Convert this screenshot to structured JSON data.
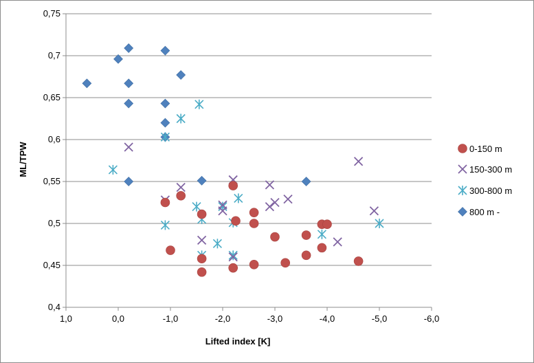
{
  "chart_data": {
    "type": "scatter",
    "title": "",
    "xlabel": "Lifted index [K]",
    "ylabel": "ML/TPW",
    "xlim": [
      1.0,
      -6.0
    ],
    "ylim": [
      0.4,
      0.75
    ],
    "x_reversed": true,
    "x_ticks": [
      1.0,
      0.0,
      -1.0,
      -2.0,
      -3.0,
      -4.0,
      -5.0,
      -6.0
    ],
    "x_tick_labels": [
      "1,0",
      "0,0",
      "-1,0",
      "-2,0",
      "-3,0",
      "-4,0",
      "-5,0",
      "-6,0"
    ],
    "y_ticks": [
      0.4,
      0.45,
      0.5,
      0.55,
      0.6,
      0.65,
      0.7,
      0.75
    ],
    "y_tick_labels": [
      "0,4",
      "0,45",
      "0,5",
      "0,55",
      "0,6",
      "0,65",
      "0,7",
      "0,75"
    ],
    "grid": "horizontal",
    "legend_position": "right",
    "series": [
      {
        "name": "0-150 m",
        "marker": "circle",
        "color": "#C0504D",
        "points": [
          [
            -0.9,
            0.525
          ],
          [
            -1.2,
            0.533
          ],
          [
            -1.0,
            0.468
          ],
          [
            -1.6,
            0.511
          ],
          [
            -1.6,
            0.458
          ],
          [
            -1.6,
            0.442
          ],
          [
            -2.2,
            0.545
          ],
          [
            -2.25,
            0.503
          ],
          [
            -2.2,
            0.447
          ],
          [
            -2.6,
            0.513
          ],
          [
            -2.6,
            0.5
          ],
          [
            -2.6,
            0.451
          ],
          [
            -3.0,
            0.484
          ],
          [
            -3.2,
            0.453
          ],
          [
            -3.6,
            0.486
          ],
          [
            -3.6,
            0.462
          ],
          [
            -3.9,
            0.499
          ],
          [
            -4.0,
            0.499
          ],
          [
            -3.9,
            0.471
          ],
          [
            -4.6,
            0.455
          ]
        ]
      },
      {
        "name": "150-300 m",
        "marker": "x",
        "color": "#8064A2",
        "points": [
          [
            -0.2,
            0.591
          ],
          [
            -0.9,
            0.528
          ],
          [
            -1.2,
            0.543
          ],
          [
            -1.6,
            0.48
          ],
          [
            -2.0,
            0.522
          ],
          [
            -2.0,
            0.515
          ],
          [
            -2.2,
            0.552
          ],
          [
            -2.2,
            0.46
          ],
          [
            -2.9,
            0.546
          ],
          [
            -2.9,
            0.52
          ],
          [
            -3.0,
            0.525
          ],
          [
            -3.25,
            0.529
          ],
          [
            -4.2,
            0.478
          ],
          [
            -4.6,
            0.574
          ],
          [
            -4.9,
            0.515
          ]
        ]
      },
      {
        "name": "300-800 m",
        "marker": "asterisk",
        "color": "#4BACC6",
        "points": [
          [
            0.1,
            0.564
          ],
          [
            -0.9,
            0.603
          ],
          [
            -0.9,
            0.498
          ],
          [
            -1.2,
            0.625
          ],
          [
            -1.55,
            0.642
          ],
          [
            -1.5,
            0.52
          ],
          [
            -1.6,
            0.505
          ],
          [
            -1.6,
            0.462
          ],
          [
            -1.9,
            0.476
          ],
          [
            -2.0,
            0.52
          ],
          [
            -2.2,
            0.501
          ],
          [
            -2.2,
            0.462
          ],
          [
            -2.3,
            0.53
          ],
          [
            -3.9,
            0.487
          ],
          [
            -5.0,
            0.5
          ]
        ]
      },
      {
        "name": "800 m -",
        "marker": "diamond",
        "color": "#4F81BD",
        "points": [
          [
            0.6,
            0.667
          ],
          [
            0.0,
            0.696
          ],
          [
            -0.2,
            0.709
          ],
          [
            -0.2,
            0.667
          ],
          [
            -0.2,
            0.643
          ],
          [
            -0.2,
            0.55
          ],
          [
            -0.9,
            0.706
          ],
          [
            -0.9,
            0.643
          ],
          [
            -0.9,
            0.62
          ],
          [
            -0.9,
            0.603
          ],
          [
            -1.2,
            0.677
          ],
          [
            -1.6,
            0.551
          ],
          [
            -3.6,
            0.55
          ]
        ]
      }
    ]
  }
}
